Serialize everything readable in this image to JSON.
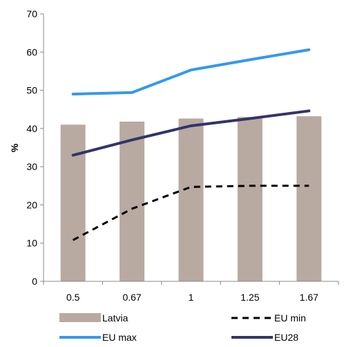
{
  "chart_data": {
    "type": "bar",
    "categories": [
      "0.5",
      "0.67",
      "1",
      "1.25",
      "1.67"
    ],
    "ylabel": "%",
    "ylim": [
      0,
      70
    ],
    "yticks": [
      0,
      10,
      20,
      30,
      40,
      50,
      60,
      70
    ],
    "grid": false,
    "legend_position": "bottom",
    "series": [
      {
        "name": "Latvia",
        "kind": "bar",
        "values": [
          41,
          41.8,
          42.6,
          43,
          43.2
        ],
        "color": "#b8aaa1"
      },
      {
        "name": "EU min",
        "kind": "line",
        "style": "dashed",
        "values": [
          10.8,
          19,
          24.7,
          25,
          25
        ],
        "color": "#000000"
      },
      {
        "name": "EU max",
        "kind": "line",
        "values": [
          49,
          49.4,
          55.3,
          58,
          60.6
        ],
        "color": "#3399ee"
      },
      {
        "name": "EU28",
        "kind": "line",
        "values": [
          33,
          37,
          40.7,
          42.6,
          44.6
        ],
        "color": "#33336b"
      }
    ]
  }
}
